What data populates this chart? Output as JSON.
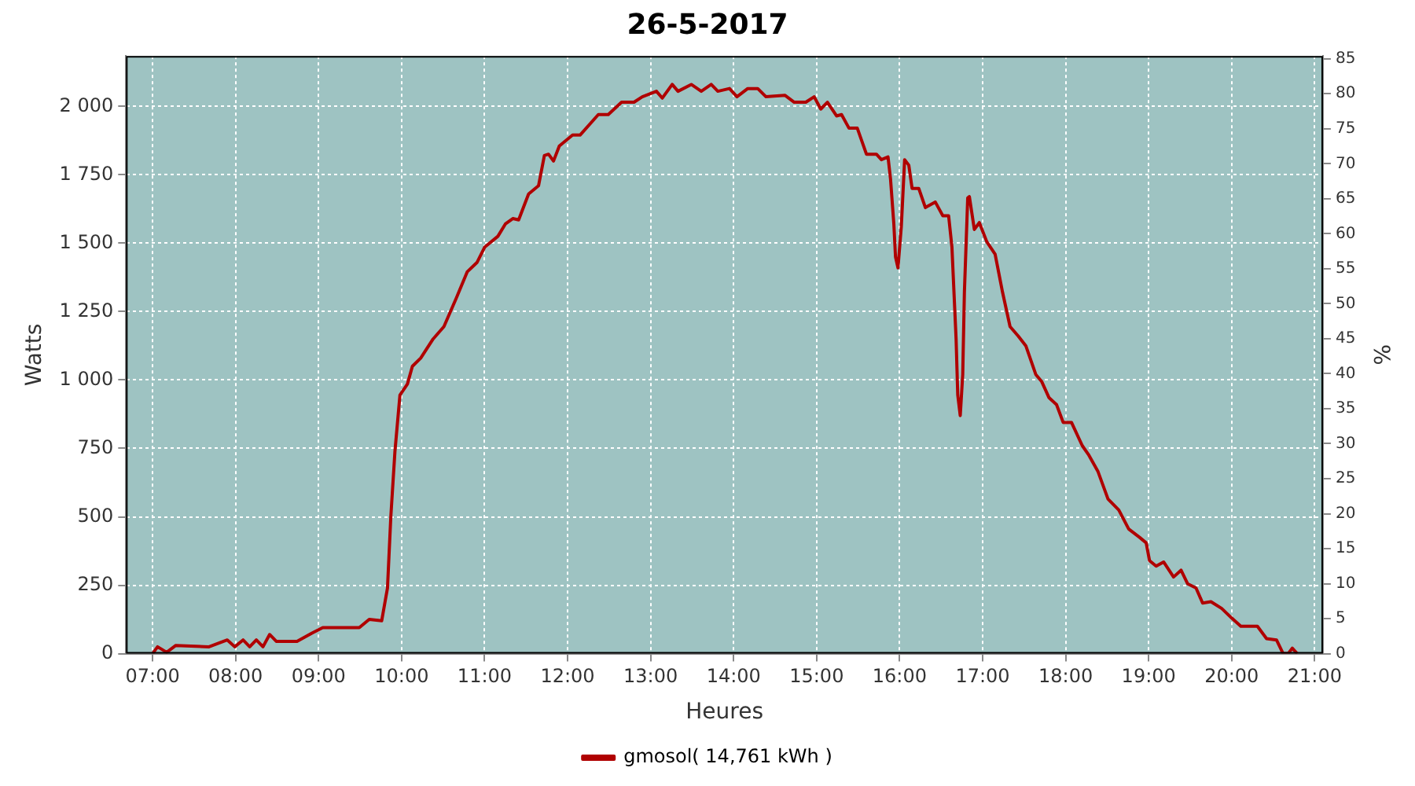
{
  "chart_data": {
    "type": "line",
    "title": "26-5-2017",
    "xlabel": "Heures",
    "ylabel": "Watts",
    "y2label": "%",
    "xlim": [
      6.68,
      21.1
    ],
    "xticks": [
      {
        "value": 7,
        "label": "07:00"
      },
      {
        "value": 8,
        "label": "08:00"
      },
      {
        "value": 9,
        "label": "09:00"
      },
      {
        "value": 10,
        "label": "10:00"
      },
      {
        "value": 11,
        "label": "11:00"
      },
      {
        "value": 12,
        "label": "12:00"
      },
      {
        "value": 13,
        "label": "13:00"
      },
      {
        "value": 14,
        "label": "14:00"
      },
      {
        "value": 15,
        "label": "15:00"
      },
      {
        "value": 16,
        "label": "16:00"
      },
      {
        "value": 17,
        "label": "17:00"
      },
      {
        "value": 18,
        "label": "18:00"
      },
      {
        "value": 19,
        "label": "19:00"
      },
      {
        "value": 20,
        "label": "20:00"
      },
      {
        "value": 21,
        "label": "21:00"
      }
    ],
    "ylim": [
      0,
      2184
    ],
    "yticks": [
      0,
      250,
      500,
      750,
      {
        "value": 1000,
        "label": "1 000"
      },
      {
        "value": 1250,
        "label": "1 250"
      },
      {
        "value": 1500,
        "label": "1 500"
      },
      {
        "value": 1750,
        "label": "1 750"
      },
      {
        "value": 2000,
        "label": "2 000"
      }
    ],
    "y2lim": [
      0,
      85.4
    ],
    "y2ticks": [
      0,
      5,
      10,
      15,
      20,
      25,
      30,
      35,
      40,
      45,
      50,
      55,
      60,
      65,
      70,
      75,
      80,
      85
    ],
    "grid": true,
    "legend": "bottom",
    "marker": "none",
    "line_style": "solid",
    "series": [
      {
        "name": "gmosol( 14,761 kWh )",
        "color": "#b00000",
        "x": [
          7.0,
          7.06,
          7.17,
          7.28,
          7.68,
          7.9,
          7.99,
          8.09,
          8.17,
          8.25,
          8.33,
          8.41,
          8.49,
          8.74,
          8.92,
          9.05,
          9.49,
          9.61,
          9.76,
          9.83,
          9.87,
          9.92,
          9.98,
          10.07,
          10.13,
          10.23,
          10.38,
          10.51,
          10.66,
          10.79,
          10.91,
          11.0,
          11.16,
          11.25,
          11.34,
          11.41,
          11.53,
          11.65,
          11.72,
          11.77,
          11.83,
          11.9,
          12.06,
          12.15,
          12.37,
          12.49,
          12.65,
          12.8,
          12.9,
          13.07,
          13.14,
          13.26,
          13.33,
          13.49,
          13.61,
          13.73,
          13.81,
          13.95,
          14.04,
          14.17,
          14.29,
          14.39,
          14.62,
          14.73,
          14.87,
          14.97,
          15.05,
          15.13,
          15.24,
          15.3,
          15.39,
          15.49,
          15.6,
          15.72,
          15.78,
          15.86,
          15.89,
          15.93,
          15.95,
          15.98,
          16.02,
          16.06,
          16.11,
          16.15,
          16.23,
          16.31,
          16.43,
          16.52,
          16.59,
          16.63,
          16.68,
          16.7,
          16.73,
          16.76,
          16.78,
          16.82,
          16.84,
          16.9,
          16.96,
          17.05,
          17.15,
          17.24,
          17.33,
          17.43,
          17.52,
          17.64,
          17.71,
          17.8,
          17.89,
          17.97,
          18.07,
          18.2,
          18.28,
          18.39,
          18.51,
          18.64,
          18.76,
          18.89,
          18.97,
          19.01,
          19.09,
          19.18,
          19.3,
          19.39,
          19.47,
          19.57,
          19.65,
          19.75,
          19.88,
          20.0,
          20.11,
          20.31,
          20.42,
          20.54,
          20.62,
          20.68,
          20.73,
          20.79
        ],
        "values": [
          0,
          25,
          5,
          30,
          25,
          50,
          25,
          50,
          25,
          50,
          25,
          70,
          45,
          45,
          75,
          95,
          95,
          125,
          120,
          240,
          500,
          740,
          945,
          985,
          1050,
          1080,
          1150,
          1195,
          1300,
          1395,
          1430,
          1485,
          1525,
          1570,
          1590,
          1585,
          1680,
          1710,
          1820,
          1825,
          1800,
          1855,
          1895,
          1895,
          1970,
          1970,
          2015,
          2015,
          2035,
          2055,
          2030,
          2080,
          2055,
          2080,
          2055,
          2080,
          2055,
          2065,
          2035,
          2065,
          2065,
          2035,
          2040,
          2015,
          2015,
          2035,
          1990,
          2015,
          1965,
          1970,
          1920,
          1920,
          1825,
          1825,
          1805,
          1815,
          1735,
          1570,
          1450,
          1410,
          1560,
          1805,
          1785,
          1700,
          1700,
          1630,
          1650,
          1600,
          1600,
          1485,
          1150,
          945,
          870,
          1020,
          1320,
          1665,
          1670,
          1550,
          1575,
          1505,
          1460,
          1320,
          1195,
          1160,
          1125,
          1020,
          995,
          935,
          910,
          845,
          845,
          760,
          725,
          665,
          565,
          525,
          455,
          425,
          405,
          340,
          320,
          335,
          280,
          305,
          255,
          240,
          185,
          190,
          165,
          130,
          100,
          100,
          55,
          50,
          0,
          0,
          20,
          0
        ]
      }
    ]
  }
}
